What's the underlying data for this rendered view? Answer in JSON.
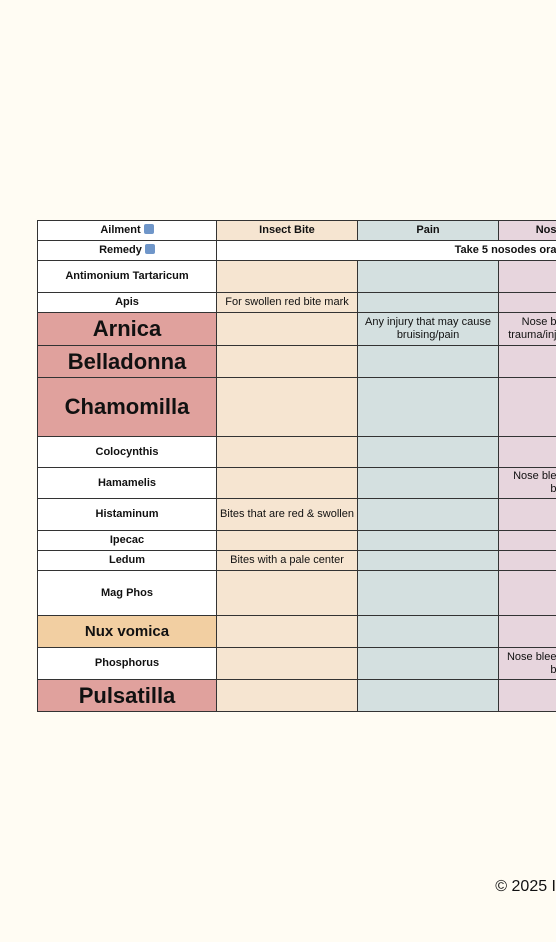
{
  "header": {
    "ailment_label": "Ailment",
    "ailments": [
      "Insect Bite",
      "Pain",
      "Nos"
    ]
  },
  "remedy_row": {
    "label": "Remedy",
    "note": "Take 5 nosodes ora"
  },
  "rows": [
    {
      "remedy": "Antimonium Tartaricum"
    },
    {
      "remedy": "Apis",
      "insect_bite": "For swollen red bite mark"
    },
    {
      "remedy": "Arnica",
      "pain": "Any injury that may cause bruising/pain",
      "col3": "Nose b\ntrauma/inj"
    },
    {
      "remedy": "Belladonna"
    },
    {
      "remedy": "Chamomilla"
    },
    {
      "remedy": "Colocynthis"
    },
    {
      "remedy": "Hamamelis",
      "col3": "Nose ble\nb"
    },
    {
      "remedy": "Histaminum",
      "insect_bite": "Bites that are red & swollen"
    },
    {
      "remedy": "Ipecac"
    },
    {
      "remedy": "Ledum",
      "insect_bite": "Bites with a pale center"
    },
    {
      "remedy": "Mag Phos"
    },
    {
      "remedy": "Nux vomica"
    },
    {
      "remedy": "Phosphorus",
      "col3": "Nose blee\nb"
    },
    {
      "remedy": "Pulsatilla"
    }
  ],
  "footer": "© 2025 I"
}
